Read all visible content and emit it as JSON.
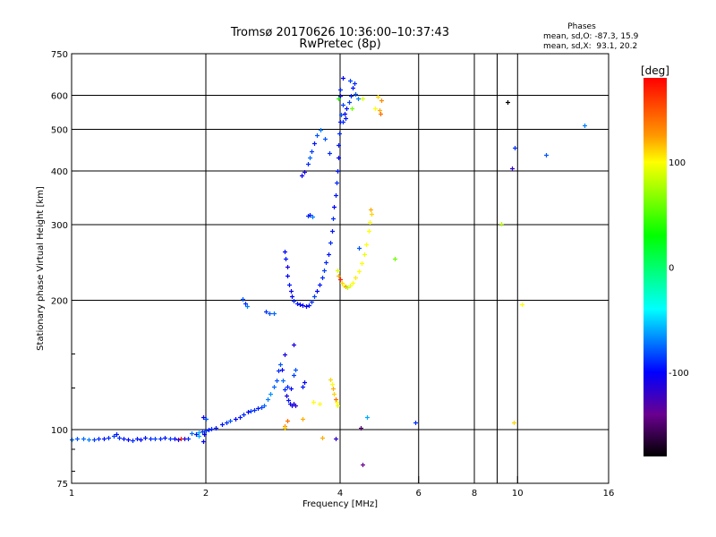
{
  "chart_data": {
    "type": "scatter",
    "title": "Tromsø 20170626 10:36:00–10:37:43",
    "subtitle": "RwPretec (8p)",
    "stats": {
      "heading": "Phases",
      "o_line": "mean, sd,O: -87.3, 15.9",
      "x_line": "mean, sd,X:  93.1, 20.2"
    },
    "xlabel": "Frequency [MHz]",
    "ylabel": "Stationary phase Virtual Height [km]",
    "xscale": "log",
    "yscale": "log",
    "xlim": [
      1,
      16
    ],
    "ylim": [
      75,
      750
    ],
    "xticks": [
      1,
      2,
      4,
      6,
      8,
      10,
      16
    ],
    "xtick_labels": [
      "1",
      "2",
      "4",
      "6",
      "8",
      "10",
      "16"
    ],
    "x_gridlines": [
      2,
      4,
      6,
      8,
      9,
      10
    ],
    "yticks": [
      75,
      100,
      200,
      300,
      400,
      500,
      600,
      750
    ],
    "ytick_labels": [
      "75",
      "100",
      "200",
      "300",
      "400",
      "500",
      "600",
      "750"
    ],
    "y_gridlines": [
      100,
      200,
      300,
      400,
      500,
      600
    ],
    "grid": true,
    "colorbar": {
      "label": "[deg]",
      "range": [
        -180,
        180
      ],
      "ticks": [
        100,
        0,
        -100
      ],
      "tick_labels": [
        "100",
        "0",
        "-100"
      ],
      "stops": [
        [
          180,
          "#ff0000"
        ],
        [
          125,
          "#ff9900"
        ],
        [
          100,
          "#ffff00"
        ],
        [
          30,
          "#00ff00"
        ],
        [
          -40,
          "#00ffff"
        ],
        [
          -100,
          "#0000ff"
        ],
        [
          -140,
          "#6a0090"
        ],
        [
          -180,
          "#000000"
        ]
      ]
    },
    "point_fields": [
      "frequency_MHz",
      "height_km",
      "phase_deg"
    ],
    "points": [
      [
        1.0,
        95,
        -75
      ],
      [
        1.03,
        95.3,
        -80
      ],
      [
        1.06,
        95.5,
        -75
      ],
      [
        1.09,
        95,
        -70
      ],
      [
        1.12,
        94.8,
        -85
      ],
      [
        1.15,
        95.5,
        -90
      ],
      [
        1.18,
        95.2,
        -95
      ],
      [
        1.21,
        95.8,
        -90
      ],
      [
        1.24,
        96.5,
        -85
      ],
      [
        1.26,
        97.5,
        -95
      ],
      [
        1.28,
        96,
        -90
      ],
      [
        1.31,
        95.5,
        -95
      ],
      [
        1.34,
        95,
        -100
      ],
      [
        1.37,
        94.6,
        -90
      ],
      [
        1.4,
        95.3,
        -95
      ],
      [
        1.43,
        94.8,
        -100
      ],
      [
        1.46,
        95.6,
        -95
      ],
      [
        1.5,
        95.2,
        -90
      ],
      [
        1.54,
        95.4,
        -85
      ],
      [
        1.58,
        95.5,
        -90
      ],
      [
        1.62,
        95.6,
        -95
      ],
      [
        1.66,
        95.3,
        -85
      ],
      [
        1.7,
        95.5,
        -100
      ],
      [
        1.73,
        95.1,
        -110
      ],
      [
        1.76,
        95.4,
        170
      ],
      [
        1.79,
        95.2,
        -120
      ],
      [
        1.82,
        95.4,
        -90
      ],
      [
        1.86,
        98,
        -75
      ],
      [
        1.9,
        97.5,
        -95
      ],
      [
        1.93,
        98.5,
        -60
      ],
      [
        1.96,
        99,
        -90
      ],
      [
        1.98,
        97.5,
        -100
      ],
      [
        2.0,
        99.5,
        -85
      ],
      [
        2.03,
        100,
        -95
      ],
      [
        2.06,
        100.5,
        -90
      ],
      [
        2.1,
        101,
        -95
      ],
      [
        1.97,
        107,
        -105
      ],
      [
        2.0,
        106,
        -80
      ],
      [
        1.97,
        94,
        -100
      ],
      [
        1.93,
        96.5,
        -60
      ],
      [
        2.17,
        103,
        -95
      ],
      [
        2.22,
        104,
        -90
      ],
      [
        2.27,
        104.8,
        -80
      ],
      [
        2.33,
        106,
        -100
      ],
      [
        2.38,
        107,
        -95
      ],
      [
        2.43,
        108.5,
        -90
      ],
      [
        2.48,
        110,
        -100
      ],
      [
        2.52,
        110.5,
        -85
      ],
      [
        2.57,
        111.2,
        -90
      ],
      [
        2.62,
        112,
        -95
      ],
      [
        2.66,
        113,
        -85
      ],
      [
        2.7,
        114,
        -75
      ],
      [
        2.75,
        118,
        -70
      ],
      [
        2.79,
        121,
        -65
      ],
      [
        2.84,
        126,
        -75
      ],
      [
        2.88,
        130,
        -80
      ],
      [
        2.91,
        137,
        -90
      ],
      [
        2.93,
        142,
        -80
      ],
      [
        2.96,
        138,
        -100
      ],
      [
        2.98,
        130,
        -75
      ],
      [
        3.0,
        124,
        -90
      ],
      [
        3.03,
        120,
        -110
      ],
      [
        3.06,
        117,
        -95
      ],
      [
        3.09,
        115,
        -105
      ],
      [
        3.12,
        114,
        -110
      ],
      [
        3.15,
        115,
        -110
      ],
      [
        3.18,
        114,
        -115
      ],
      [
        3.04,
        126,
        -90
      ],
      [
        3.1,
        125,
        -100
      ],
      [
        3.15,
        134,
        -85
      ],
      [
        3.17,
        138,
        -80
      ],
      [
        3.3,
        126,
        -95
      ],
      [
        3.32,
        129,
        -100
      ],
      [
        3.0,
        150,
        -110
      ],
      [
        3.8,
        131,
        110
      ],
      [
        3.83,
        128,
        100
      ],
      [
        3.85,
        125,
        120
      ],
      [
        3.87,
        121,
        110
      ],
      [
        3.9,
        118,
        140
      ],
      [
        3.92,
        116,
        100
      ],
      [
        3.94,
        114,
        95
      ],
      [
        3.6,
        115,
        100
      ],
      [
        3.3,
        106,
        120
      ],
      [
        3.0,
        102,
        130
      ],
      [
        3.01,
        101,
        110
      ],
      [
        2.42,
        201,
        -80
      ],
      [
        2.45,
        197,
        -90
      ],
      [
        2.47,
        194,
        -70
      ],
      [
        2.72,
        188,
        -90
      ],
      [
        2.78,
        187,
        -80
      ],
      [
        2.84,
        187,
        -75
      ],
      [
        3.0,
        260,
        -100
      ],
      [
        3.02,
        250,
        -95
      ],
      [
        3.04,
        240,
        -110
      ],
      [
        3.05,
        228,
        -100
      ],
      [
        3.07,
        218,
        -95
      ],
      [
        3.1,
        210,
        -105
      ],
      [
        3.12,
        204,
        -100
      ],
      [
        3.15,
        200,
        -90
      ],
      [
        3.2,
        197,
        -95
      ],
      [
        3.25,
        196,
        -100
      ],
      [
        3.3,
        195,
        -105
      ],
      [
        3.35,
        194,
        -100
      ],
      [
        3.4,
        195,
        -95
      ],
      [
        3.45,
        199,
        -90
      ],
      [
        3.5,
        204,
        -85
      ],
      [
        3.55,
        210,
        -100
      ],
      [
        3.6,
        218,
        -95
      ],
      [
        3.64,
        226,
        -90
      ],
      [
        3.68,
        235,
        -85
      ],
      [
        3.72,
        245,
        -90
      ],
      [
        3.76,
        256,
        -95
      ],
      [
        3.8,
        272,
        -90
      ],
      [
        3.83,
        290,
        -95
      ],
      [
        3.86,
        310,
        -90
      ],
      [
        3.88,
        330,
        -100
      ],
      [
        3.9,
        352,
        -95
      ],
      [
        3.92,
        375,
        -90
      ],
      [
        3.94,
        400,
        -95
      ],
      [
        3.96,
        430,
        -100
      ],
      [
        3.97,
        460,
        -95
      ],
      [
        3.98,
        490,
        -90
      ],
      [
        4.0,
        520,
        -95
      ],
      [
        4.02,
        540,
        -80
      ],
      [
        4.06,
        520,
        -90
      ],
      [
        4.1,
        545,
        -100
      ],
      [
        4.14,
        560,
        -95
      ],
      [
        4.18,
        580,
        -85
      ],
      [
        4.22,
        600,
        -90
      ],
      [
        4.26,
        625,
        -95
      ],
      [
        4.3,
        640,
        -90
      ],
      [
        4.2,
        650,
        -85
      ],
      [
        4.05,
        660,
        -100
      ],
      [
        4.0,
        620,
        -90
      ],
      [
        4.0,
        600,
        -110
      ],
      [
        4.33,
        605,
        -80
      ],
      [
        4.38,
        590,
        -70
      ],
      [
        4.05,
        570,
        -85
      ],
      [
        4.12,
        530,
        -95
      ],
      [
        4.25,
        560,
        60
      ],
      [
        3.97,
        590,
        40
      ],
      [
        3.28,
        390,
        -100
      ],
      [
        3.33,
        398,
        -110
      ],
      [
        3.38,
        415,
        -90
      ],
      [
        3.42,
        430,
        -75
      ],
      [
        3.45,
        445,
        -85
      ],
      [
        3.5,
        465,
        -95
      ],
      [
        3.55,
        485,
        -80
      ],
      [
        3.62,
        500,
        -70
      ],
      [
        3.7,
        475,
        -80
      ],
      [
        3.78,
        440,
        -90
      ],
      [
        3.38,
        315,
        -90
      ],
      [
        3.42,
        316,
        -95
      ],
      [
        3.47,
        314,
        -70
      ],
      [
        3.94,
        235,
        90
      ],
      [
        3.97,
        228,
        120
      ],
      [
        4.0,
        224,
        170
      ],
      [
        4.04,
        220,
        110
      ],
      [
        4.08,
        217,
        100
      ],
      [
        4.12,
        215,
        125
      ],
      [
        4.16,
        214,
        80
      ],
      [
        4.2,
        216,
        95
      ],
      [
        4.26,
        220,
        100
      ],
      [
        4.32,
        226,
        105
      ],
      [
        4.4,
        234,
        100
      ],
      [
        4.47,
        244,
        100
      ],
      [
        4.53,
        256,
        95
      ],
      [
        4.58,
        270,
        100
      ],
      [
        4.63,
        290,
        100
      ],
      [
        4.66,
        305,
        100
      ],
      [
        4.69,
        325,
        120
      ],
      [
        4.7,
        318,
        110
      ],
      [
        4.86,
        595,
        110
      ],
      [
        4.95,
        585,
        130
      ],
      [
        4.8,
        560,
        100
      ],
      [
        4.9,
        555,
        120
      ],
      [
        4.92,
        545,
        140
      ],
      [
        4.5,
        590,
        90
      ],
      [
        9.5,
        578,
        -180
      ],
      [
        9.85,
        453,
        -90
      ],
      [
        9.7,
        406,
        -120
      ],
      [
        11.6,
        437,
        -80
      ],
      [
        14.1,
        510,
        -70
      ],
      [
        9.2,
        302,
        80
      ],
      [
        10.2,
        196,
        100
      ],
      [
        9.8,
        104,
        110
      ],
      [
        5.9,
        104,
        -90
      ],
      [
        5.3,
        250,
        60
      ],
      [
        4.5,
        83,
        -140
      ],
      [
        4.6,
        107,
        -60
      ],
      [
        4.45,
        101,
        -150
      ],
      [
        3.9,
        95.3,
        -120
      ],
      [
        3.65,
        96,
        120
      ],
      [
        3.48,
        116,
        100
      ],
      [
        3.05,
        105,
        140
      ],
      [
        3.15,
        158,
        -110
      ],
      [
        4.4,
        265,
        -80
      ]
    ]
  }
}
